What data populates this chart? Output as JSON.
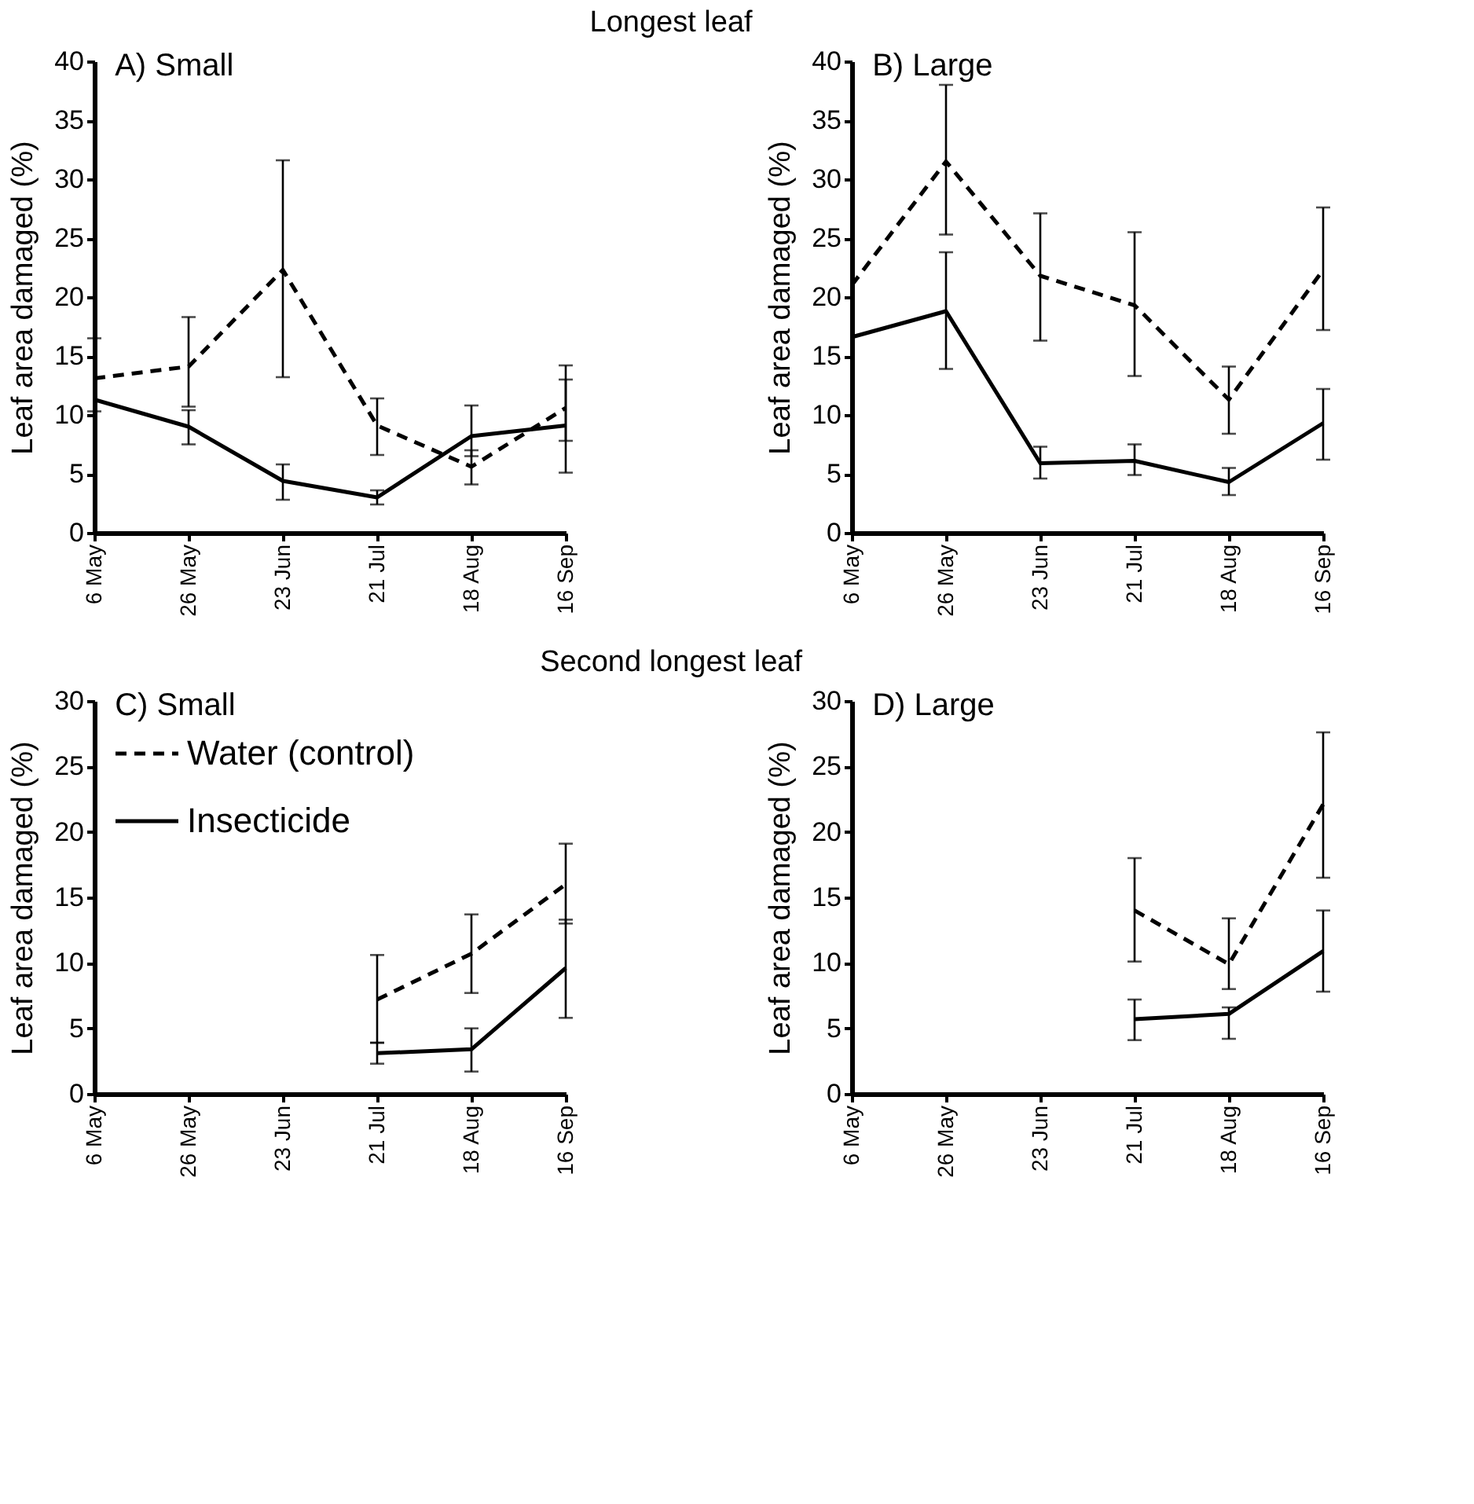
{
  "chart_data": [
    {
      "type": "line",
      "title": "A) Small",
      "annotations": [
        "Longest leaf"
      ],
      "ylabel": "Leaf area damaged (%)",
      "categories": [
        "6 May",
        "26 May",
        "23 Jun",
        "21 Jul",
        "18 Aug",
        "16 Sep"
      ],
      "ylim": [
        0,
        40
      ],
      "yticks": [
        0,
        5,
        10,
        15,
        20,
        25,
        30,
        35,
        40
      ],
      "grid": false,
      "legend": false,
      "marker": "none",
      "series": [
        {
          "color": "#000000",
          "line_style": "dashed",
          "values": [
            13.1,
            14.1,
            22.3,
            9.1,
            5.6,
            10.6
          ],
          "errors": [
            [
              10.3,
              16.5
            ],
            [
              10.7,
              18.3
            ],
            [
              13.2,
              31.6
            ],
            [
              6.6,
              11.4
            ],
            [
              4.1,
              7.0
            ],
            [
              7.8,
              13.0
            ]
          ]
        },
        {
          "color": "#000000",
          "line_style": "solid",
          "values": [
            11.3,
            9.0,
            4.4,
            3.0,
            8.2,
            9.1
          ],
          "errors": [
            null,
            [
              7.5,
              10.4
            ],
            [
              2.8,
              5.8
            ],
            [
              2.4,
              3.6
            ],
            [
              6.5,
              10.8
            ],
            [
              5.1,
              14.2
            ]
          ]
        }
      ]
    },
    {
      "type": "line",
      "title": "B) Large",
      "ylabel": "Leaf area damaged (%)",
      "categories": [
        "6 May",
        "26 May",
        "23 Jun",
        "21 Jul",
        "18 Aug",
        "16 Sep"
      ],
      "ylim": [
        0,
        40
      ],
      "yticks": [
        0,
        5,
        10,
        15,
        20,
        25,
        30,
        35,
        40
      ],
      "grid": false,
      "legend": false,
      "marker": "none",
      "series": [
        {
          "color": "#000000",
          "line_style": "dashed",
          "values": [
            21.0,
            31.5,
            21.8,
            19.3,
            11.3,
            22.3
          ],
          "errors": [
            null,
            [
              25.3,
              38.0
            ],
            [
              16.3,
              27.1
            ],
            [
              13.3,
              25.5
            ],
            [
              8.4,
              14.1
            ],
            [
              17.2,
              27.6
            ]
          ]
        },
        {
          "color": "#000000",
          "line_style": "solid",
          "values": [
            16.6,
            18.8,
            5.9,
            6.1,
            4.3,
            9.3
          ],
          "errors": [
            null,
            [
              13.9,
              23.8
            ],
            [
              4.6,
              7.3
            ],
            [
              4.9,
              7.5
            ],
            [
              3.2,
              5.5
            ],
            [
              6.2,
              12.2
            ]
          ]
        }
      ]
    },
    {
      "type": "line",
      "title": "C) Small",
      "annotations": [
        "Second longest leaf"
      ],
      "ylabel": "Leaf area damaged (%)",
      "categories": [
        "6 May",
        "26 May",
        "23 Jun",
        "21 Jul",
        "18 Aug",
        "16 Sep"
      ],
      "ylim": [
        0,
        30
      ],
      "yticks": [
        0,
        5,
        10,
        15,
        20,
        25,
        30
      ],
      "grid": false,
      "legend": "top left",
      "marker": "none",
      "series": [
        {
          "name": "Water (control)",
          "color": "#000000",
          "line_style": "dashed",
          "values": [
            null,
            null,
            null,
            7.2,
            10.7,
            16.0
          ],
          "errors": [
            null,
            null,
            null,
            [
              3.9,
              10.6
            ],
            [
              7.7,
              13.7
            ],
            [
              13.0,
              19.1
            ]
          ]
        },
        {
          "name": "Insecticide",
          "color": "#000000",
          "line_style": "solid",
          "values": [
            null,
            null,
            null,
            3.1,
            3.4,
            9.6
          ],
          "errors": [
            null,
            null,
            null,
            [
              2.3,
              3.9
            ],
            [
              1.7,
              5.0
            ],
            [
              5.8,
              13.3
            ]
          ]
        }
      ]
    },
    {
      "type": "line",
      "title": "D) Large",
      "ylabel": "Leaf area damaged (%)",
      "categories": [
        "6 May",
        "26 May",
        "23 Jun",
        "21 Jul",
        "18 Aug",
        "16 Sep"
      ],
      "ylim": [
        0,
        30
      ],
      "yticks": [
        0,
        5,
        10,
        15,
        20,
        25,
        30
      ],
      "grid": false,
      "legend": false,
      "marker": "none",
      "series": [
        {
          "color": "#000000",
          "line_style": "dashed",
          "values": [
            null,
            null,
            null,
            14.0,
            9.9,
            22.1
          ],
          "errors": [
            null,
            null,
            null,
            [
              10.1,
              18.0
            ],
            [
              8.0,
              13.4
            ],
            [
              16.5,
              27.6
            ]
          ]
        },
        {
          "color": "#000000",
          "line_style": "solid",
          "values": [
            null,
            null,
            null,
            5.7,
            6.1,
            10.9
          ],
          "errors": [
            null,
            null,
            null,
            [
              4.1,
              7.2
            ],
            [
              4.2,
              6.6
            ],
            [
              7.8,
              14.0
            ]
          ]
        }
      ]
    }
  ]
}
